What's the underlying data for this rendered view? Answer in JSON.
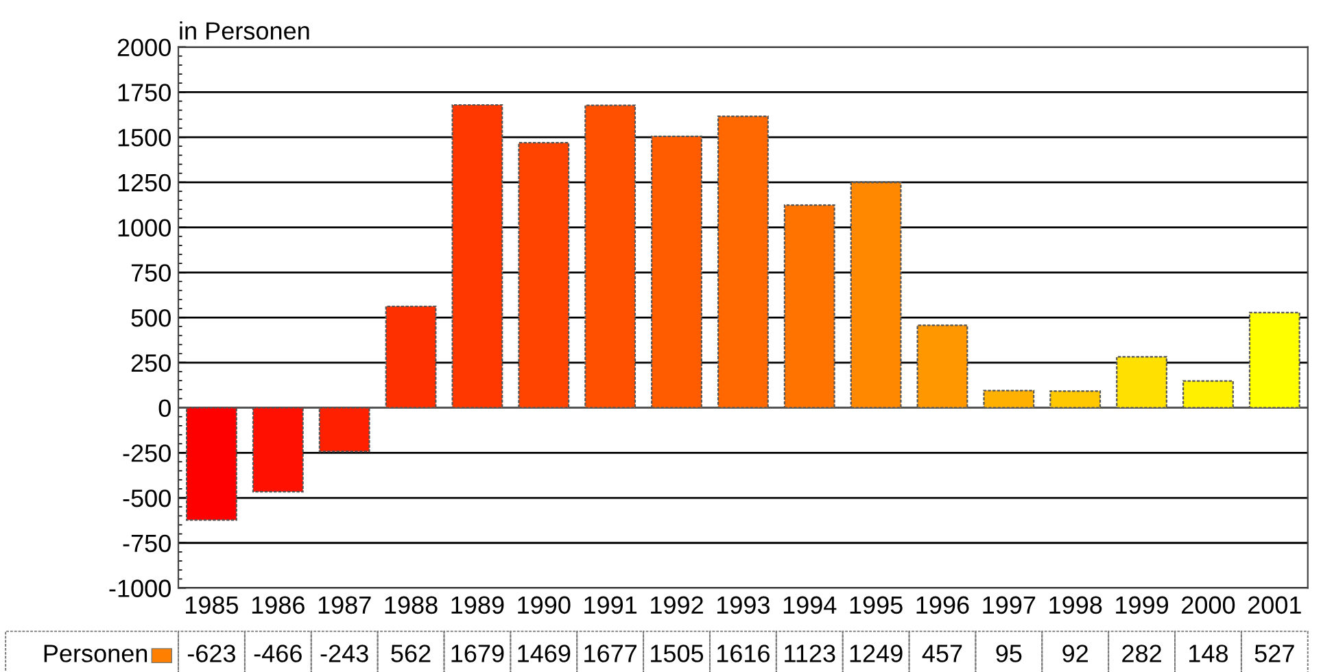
{
  "chart_data": {
    "type": "bar",
    "ylabel": "in Personen",
    "categories": [
      "1985",
      "1986",
      "1987",
      "1988",
      "1989",
      "1990",
      "1991",
      "1992",
      "1993",
      "1994",
      "1995",
      "1996",
      "1997",
      "1998",
      "1999",
      "2000",
      "2001"
    ],
    "series": [
      {
        "name": "Personen",
        "color": "#ff8000",
        "values": [
          -623,
          -466,
          -243,
          562,
          1679,
          1469,
          1677,
          1505,
          1616,
          1123,
          1249,
          457,
          95,
          92,
          282,
          148,
          527
        ],
        "colors": [
          "#ff0000",
          "#ff1000",
          "#ff2000",
          "#ff3000",
          "#ff3800",
          "#ff4400",
          "#ff5000",
          "#ff5c00",
          "#ff6800",
          "#ff7400",
          "#ff8800",
          "#ff9800",
          "#ffb000",
          "#ffc800",
          "#ffe000",
          "#fff000",
          "#ffff00"
        ]
      }
    ],
    "ylim": [
      -1000,
      2000
    ],
    "yticks": [
      -1000,
      -750,
      -500,
      -250,
      0,
      250,
      500,
      750,
      1000,
      1250,
      1500,
      1750,
      2000
    ],
    "grid": "y",
    "data_labels": true,
    "legend": "bottom left"
  }
}
